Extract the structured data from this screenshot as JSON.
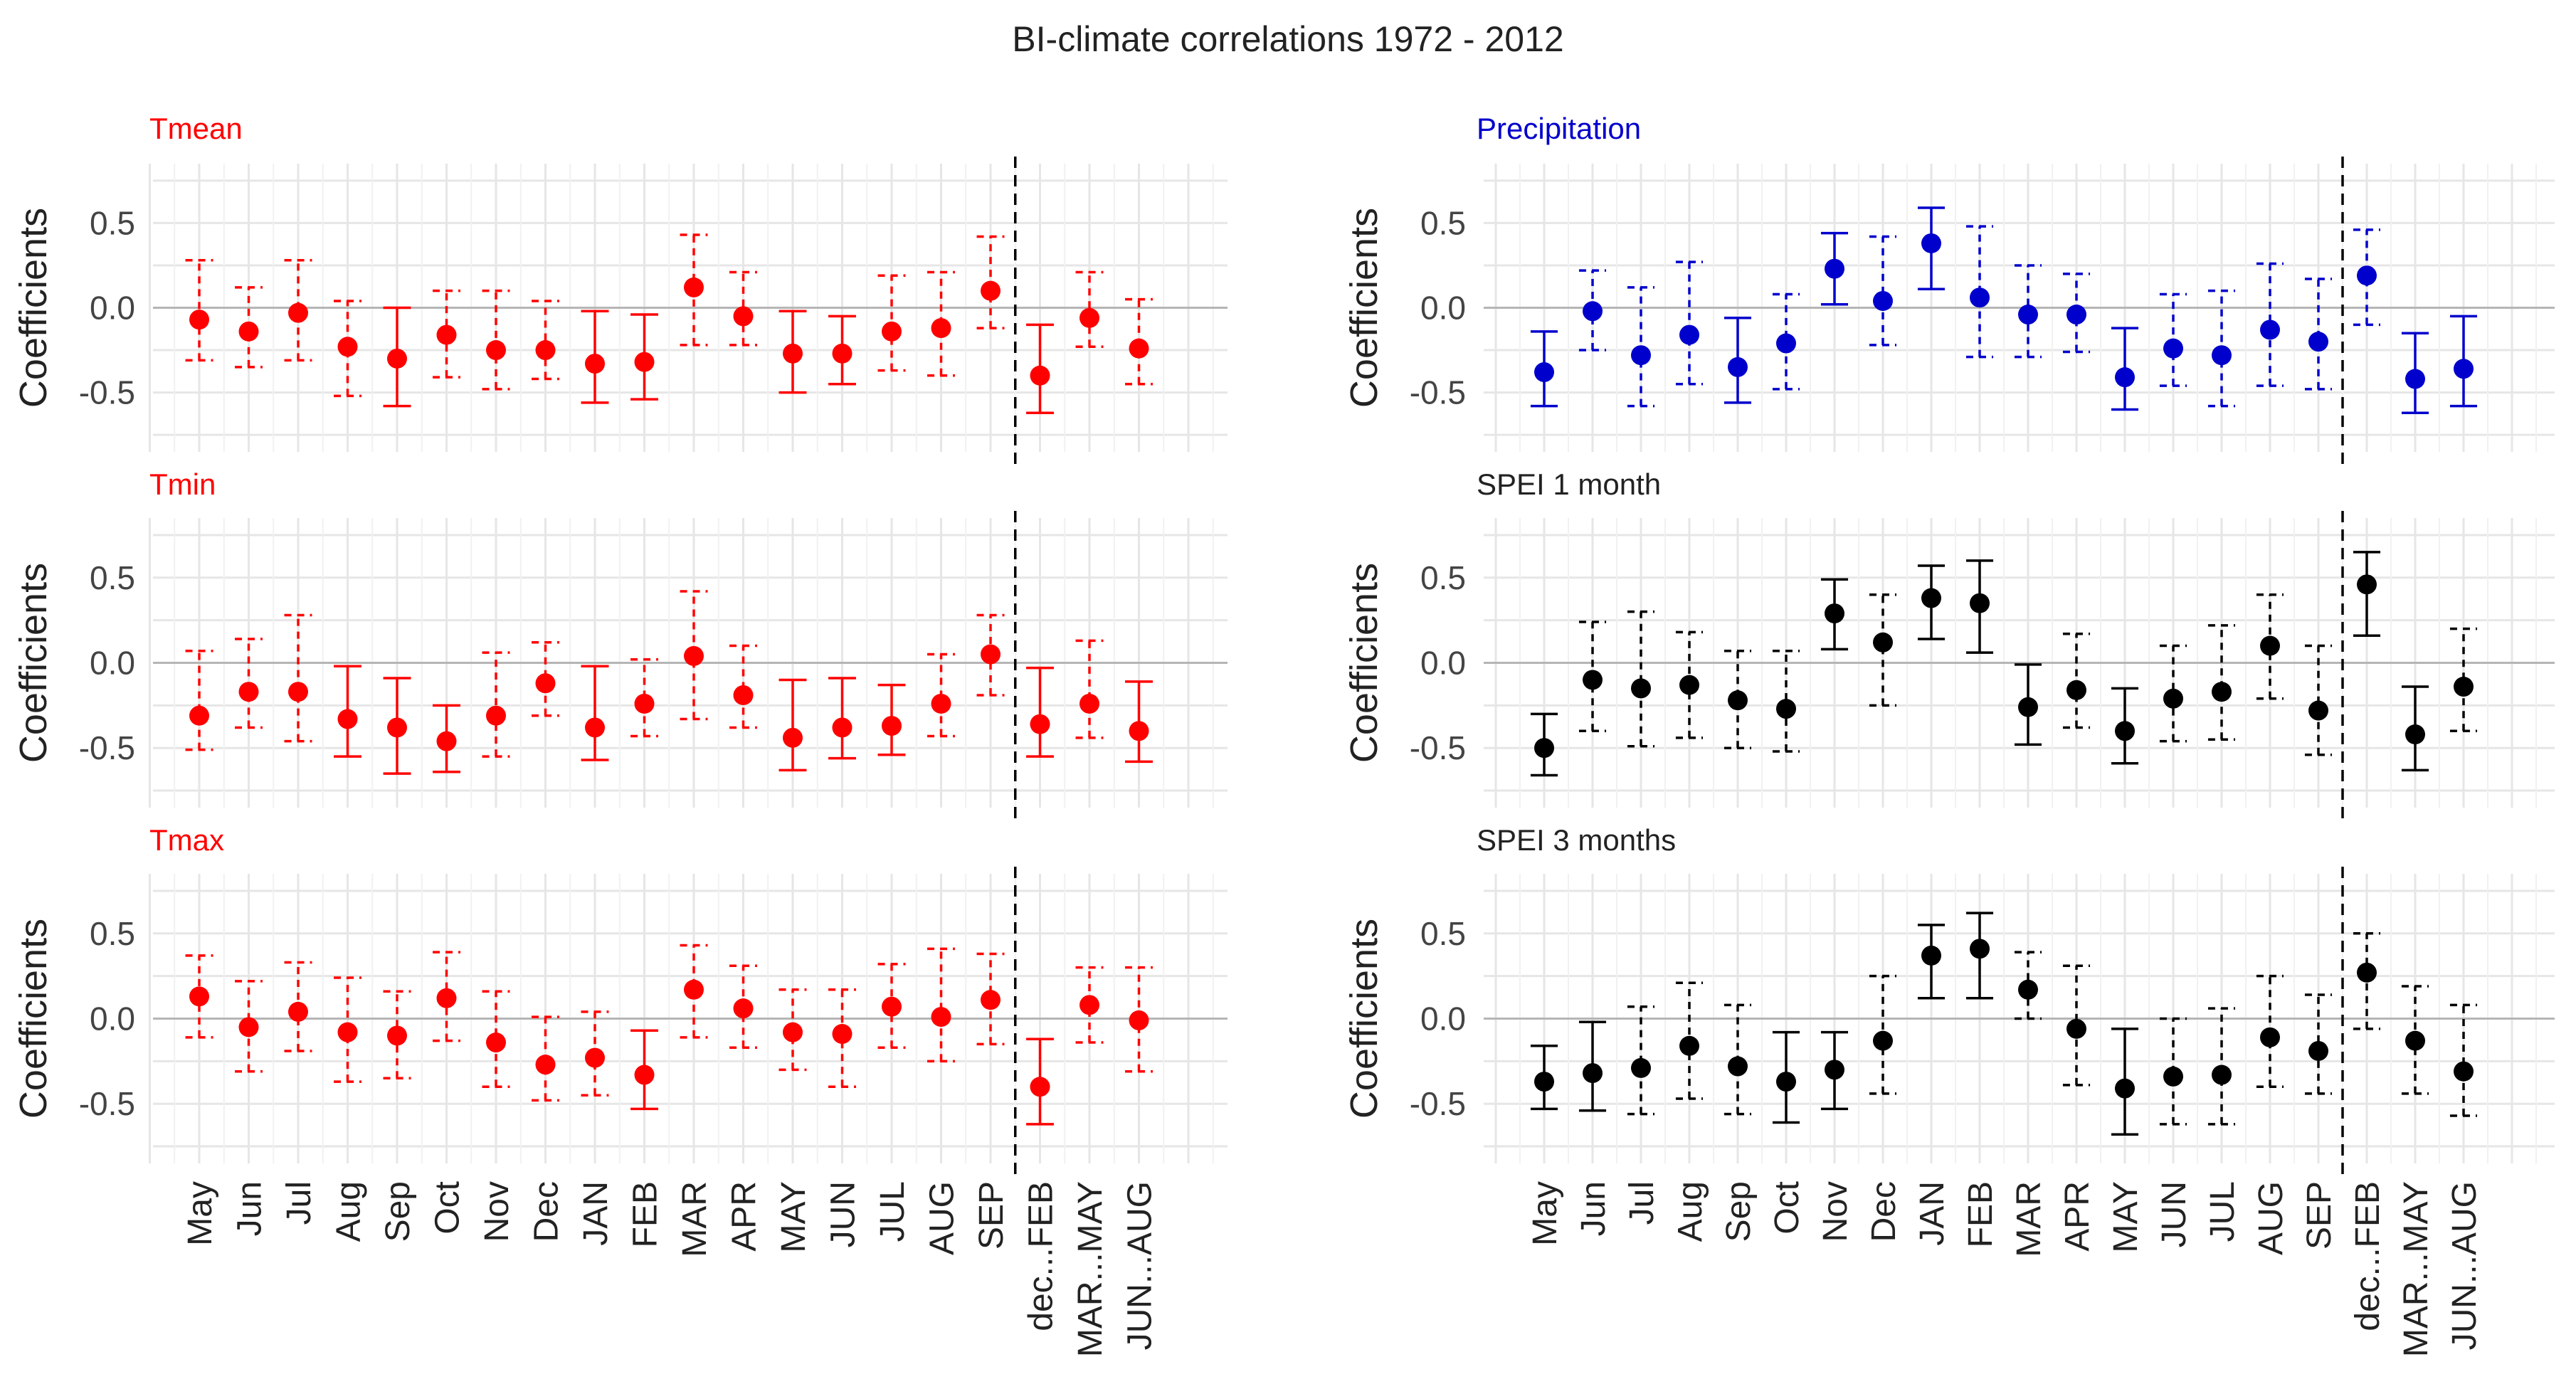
{
  "figure_title": "BI-climate correlations 1972 - 2012",
  "colors": {
    "red": "#ff0000",
    "blue": "#0000cc",
    "black": "#000000"
  },
  "chart_data": [
    {
      "type": "errorbar",
      "title": "Tmean",
      "color": "#ff0000",
      "ylabel": "Coefficients",
      "ylim": [
        -0.85,
        0.85
      ],
      "yticks": [
        "0.5",
        "0.0",
        "-0.5"
      ],
      "categories": [
        "May",
        "Jun",
        "Jul",
        "Aug",
        "Sep",
        "Oct",
        "Nov",
        "Dec",
        "JAN",
        "FEB",
        "MAR",
        "APR",
        "MAY",
        "JUN",
        "JUL",
        "AUG",
        "SEP",
        "dec...FEB",
        "MAR...MAY",
        "JUN...AUG"
      ],
      "values": [
        -0.07,
        -0.14,
        -0.03,
        -0.23,
        -0.3,
        -0.16,
        -0.25,
        -0.25,
        -0.33,
        -0.32,
        0.12,
        -0.05,
        -0.27,
        -0.27,
        -0.14,
        -0.12,
        0.1,
        -0.4,
        -0.06,
        -0.24
      ],
      "lower": [
        -0.31,
        -0.35,
        -0.31,
        -0.52,
        -0.58,
        -0.41,
        -0.48,
        -0.42,
        -0.56,
        -0.54,
        -0.22,
        -0.22,
        -0.5,
        -0.45,
        -0.37,
        -0.4,
        -0.12,
        -0.62,
        -0.23,
        -0.45
      ],
      "upper": [
        0.28,
        0.12,
        0.28,
        0.04,
        0.0,
        0.1,
        0.1,
        0.04,
        -0.02,
        -0.04,
        0.43,
        0.21,
        -0.02,
        -0.05,
        0.19,
        0.21,
        0.42,
        -0.1,
        0.21,
        0.05
      ],
      "significant": [
        false,
        false,
        false,
        false,
        true,
        false,
        false,
        false,
        true,
        true,
        false,
        false,
        true,
        true,
        false,
        false,
        false,
        true,
        false,
        false
      ]
    },
    {
      "type": "errorbar",
      "title": "Precipitation",
      "color": "#0000cc",
      "ylabel": "Coefficients",
      "ylim": [
        -0.85,
        0.85
      ],
      "yticks": [
        "0.5",
        "0.0",
        "-0.5"
      ],
      "categories": [
        "May",
        "Jun",
        "Jul",
        "Aug",
        "Sep",
        "Oct",
        "Nov",
        "Dec",
        "JAN",
        "FEB",
        "MAR",
        "APR",
        "MAY",
        "JUN",
        "JUL",
        "AUG",
        "SEP",
        "dec...FEB",
        "MAR...MAY",
        "JUN...AUG"
      ],
      "values": [
        -0.38,
        -0.02,
        -0.28,
        -0.16,
        -0.35,
        -0.21,
        0.23,
        0.04,
        0.38,
        0.06,
        -0.04,
        -0.04,
        -0.41,
        -0.24,
        -0.28,
        -0.13,
        -0.2,
        0.19,
        -0.42,
        -0.36
      ],
      "lower": [
        -0.58,
        -0.25,
        -0.58,
        -0.45,
        -0.56,
        -0.48,
        0.02,
        -0.22,
        0.11,
        -0.29,
        -0.29,
        -0.26,
        -0.6,
        -0.46,
        -0.58,
        -0.46,
        -0.48,
        -0.1,
        -0.62,
        -0.58
      ],
      "upper": [
        -0.14,
        0.22,
        0.12,
        0.27,
        -0.06,
        0.08,
        0.44,
        0.42,
        0.59,
        0.48,
        0.25,
        0.2,
        -0.12,
        0.08,
        0.1,
        0.26,
        0.17,
        0.46,
        -0.15,
        -0.05
      ],
      "significant": [
        true,
        false,
        false,
        false,
        true,
        false,
        true,
        false,
        true,
        false,
        false,
        false,
        true,
        false,
        false,
        false,
        false,
        false,
        true,
        true
      ]
    },
    {
      "type": "errorbar",
      "title": "Tmin",
      "color": "#ff0000",
      "ylabel": "Coefficients",
      "ylim": [
        -0.85,
        0.85
      ],
      "yticks": [
        "0.5",
        "0.0",
        "-0.5"
      ],
      "categories": [
        "May",
        "Jun",
        "Jul",
        "Aug",
        "Sep",
        "Oct",
        "Nov",
        "Dec",
        "JAN",
        "FEB",
        "MAR",
        "APR",
        "MAY",
        "JUN",
        "JUL",
        "AUG",
        "SEP",
        "dec...FEB",
        "MAR...MAY",
        "JUN...AUG"
      ],
      "values": [
        -0.31,
        -0.17,
        -0.17,
        -0.33,
        -0.38,
        -0.46,
        -0.31,
        -0.12,
        -0.38,
        -0.24,
        0.04,
        -0.19,
        -0.44,
        -0.38,
        -0.37,
        -0.24,
        0.05,
        -0.36,
        -0.24,
        -0.4
      ],
      "lower": [
        -0.51,
        -0.38,
        -0.46,
        -0.55,
        -0.65,
        -0.64,
        -0.55,
        -0.31,
        -0.57,
        -0.43,
        -0.33,
        -0.38,
        -0.63,
        -0.56,
        -0.54,
        -0.43,
        -0.19,
        -0.55,
        -0.44,
        -0.58
      ],
      "upper": [
        0.07,
        0.14,
        0.28,
        -0.02,
        -0.09,
        -0.25,
        0.06,
        0.12,
        -0.02,
        0.02,
        0.42,
        0.1,
        -0.1,
        -0.09,
        -0.13,
        0.05,
        0.28,
        -0.03,
        0.13,
        -0.11
      ],
      "significant": [
        false,
        false,
        false,
        true,
        true,
        true,
        false,
        false,
        true,
        false,
        false,
        false,
        true,
        true,
        true,
        false,
        false,
        true,
        false,
        true
      ]
    },
    {
      "type": "errorbar",
      "title": "SPEI 1 month",
      "color": "#000000",
      "ylabel": "Coefficients",
      "ylim": [
        -0.85,
        0.85
      ],
      "yticks": [
        "0.5",
        "0.0",
        "-0.5"
      ],
      "categories": [
        "May",
        "Jun",
        "Jul",
        "Aug",
        "Sep",
        "Oct",
        "Nov",
        "Dec",
        "JAN",
        "FEB",
        "MAR",
        "APR",
        "MAY",
        "JUN",
        "JUL",
        "AUG",
        "SEP",
        "dec...FEB",
        "MAR...MAY",
        "JUN...AUG"
      ],
      "values": [
        -0.5,
        -0.1,
        -0.15,
        -0.13,
        -0.22,
        -0.27,
        0.29,
        0.12,
        0.38,
        0.35,
        -0.26,
        -0.16,
        -0.4,
        -0.21,
        -0.17,
        0.1,
        -0.28,
        0.46,
        -0.42,
        -0.14
      ],
      "lower": [
        -0.66,
        -0.4,
        -0.49,
        -0.44,
        -0.5,
        -0.52,
        0.08,
        -0.25,
        0.14,
        0.06,
        -0.48,
        -0.38,
        -0.59,
        -0.46,
        -0.45,
        -0.21,
        -0.54,
        0.16,
        -0.63,
        -0.4
      ],
      "upper": [
        -0.3,
        0.24,
        0.3,
        0.18,
        0.07,
        0.07,
        0.49,
        0.4,
        0.57,
        0.6,
        -0.01,
        0.17,
        -0.15,
        0.1,
        0.22,
        0.4,
        0.1,
        0.65,
        -0.14,
        0.2
      ],
      "significant": [
        true,
        false,
        false,
        false,
        false,
        false,
        true,
        false,
        true,
        true,
        true,
        false,
        true,
        false,
        false,
        false,
        false,
        true,
        true,
        false
      ]
    },
    {
      "type": "errorbar",
      "title": "Tmax",
      "color": "#ff0000",
      "ylabel": "Coefficients",
      "ylim": [
        -0.85,
        0.85
      ],
      "yticks": [
        "0.5",
        "0.0",
        "-0.5"
      ],
      "categories": [
        "May",
        "Jun",
        "Jul",
        "Aug",
        "Sep",
        "Oct",
        "Nov",
        "Dec",
        "JAN",
        "FEB",
        "MAR",
        "APR",
        "MAY",
        "JUN",
        "JUL",
        "AUG",
        "SEP",
        "dec...FEB",
        "MAR...MAY",
        "JUN...AUG"
      ],
      "values": [
        0.13,
        -0.05,
        0.04,
        -0.08,
        -0.1,
        0.12,
        -0.14,
        -0.27,
        -0.23,
        -0.33,
        0.17,
        0.06,
        -0.08,
        -0.09,
        0.07,
        0.01,
        0.11,
        -0.4,
        0.08,
        -0.01
      ],
      "lower": [
        -0.11,
        -0.31,
        -0.19,
        -0.37,
        -0.35,
        -0.13,
        -0.4,
        -0.48,
        -0.45,
        -0.53,
        -0.11,
        -0.17,
        -0.3,
        -0.4,
        -0.17,
        -0.25,
        -0.15,
        -0.62,
        -0.14,
        -0.31
      ],
      "upper": [
        0.37,
        0.22,
        0.33,
        0.24,
        0.16,
        0.39,
        0.16,
        0.01,
        0.04,
        -0.07,
        0.43,
        0.31,
        0.17,
        0.17,
        0.32,
        0.41,
        0.38,
        -0.12,
        0.3,
        0.3
      ],
      "significant": [
        false,
        false,
        false,
        false,
        false,
        false,
        false,
        false,
        false,
        true,
        false,
        false,
        false,
        false,
        false,
        false,
        false,
        true,
        false,
        false
      ]
    },
    {
      "type": "errorbar",
      "title": "SPEI 3 months",
      "color": "#000000",
      "ylabel": "Coefficients",
      "ylim": [
        -0.85,
        0.85
      ],
      "yticks": [
        "0.5",
        "0.0",
        "-0.5"
      ],
      "categories": [
        "May",
        "Jun",
        "Jul",
        "Aug",
        "Sep",
        "Oct",
        "Nov",
        "Dec",
        "JAN",
        "FEB",
        "MAR",
        "APR",
        "MAY",
        "JUN",
        "JUL",
        "AUG",
        "SEP",
        "dec...FEB",
        "MAR...MAY",
        "JUN...AUG"
      ],
      "values": [
        -0.37,
        -0.32,
        -0.29,
        -0.16,
        -0.28,
        -0.37,
        -0.3,
        -0.13,
        0.37,
        0.41,
        0.17,
        -0.06,
        -0.41,
        -0.34,
        -0.33,
        -0.11,
        -0.19,
        0.27,
        -0.13,
        -0.31
      ],
      "lower": [
        -0.53,
        -0.54,
        -0.56,
        -0.47,
        -0.56,
        -0.61,
        -0.53,
        -0.44,
        0.12,
        0.12,
        0.0,
        -0.39,
        -0.68,
        -0.62,
        -0.62,
        -0.4,
        -0.44,
        -0.06,
        -0.44,
        -0.57
      ],
      "upper": [
        -0.16,
        -0.02,
        0.07,
        0.21,
        0.08,
        -0.08,
        -0.08,
        0.25,
        0.55,
        0.62,
        0.39,
        0.31,
        -0.06,
        0.0,
        0.06,
        0.25,
        0.14,
        0.5,
        0.19,
        0.08
      ],
      "significant": [
        true,
        true,
        false,
        false,
        false,
        true,
        true,
        false,
        true,
        true,
        false,
        false,
        true,
        false,
        false,
        false,
        false,
        false,
        false,
        false
      ]
    }
  ]
}
